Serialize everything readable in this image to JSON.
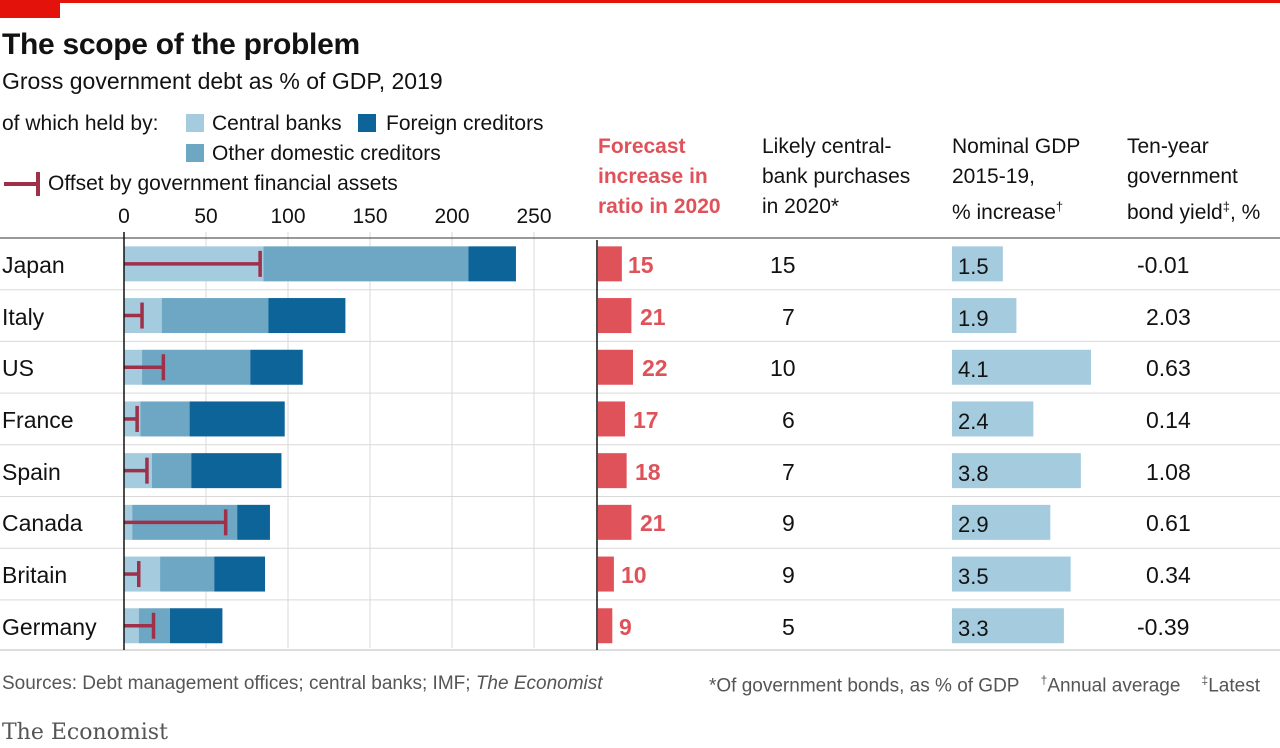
{
  "title": "The scope of the problem",
  "subtitle": "Gross government debt as % of GDP, 2019",
  "legend": {
    "held_by_label": "of which held by:",
    "central_banks": "Central banks",
    "foreign_creditors": "Foreign creditors",
    "other_domestic": "Other domestic creditors",
    "offset": "Offset by government financial assets"
  },
  "colors": {
    "central_banks": "#a5cbdf",
    "other_domestic": "#6ea7c3",
    "foreign_creditors": "#0d6499",
    "offset": "#9e3049",
    "forecast": "#e0525a",
    "gdp_bar": "#a5cbdf",
    "accent": "#e3120b"
  },
  "column_headers": {
    "forecast": [
      "Forecast",
      "increase in",
      "ratio in 2020"
    ],
    "purchases": [
      "Likely central-",
      "bank purchases",
      "in 2020*"
    ],
    "gdp": [
      "Nominal GDP",
      "2015-19,",
      "% increase"
    ],
    "gdp_mark": "†",
    "yield": [
      "Ten-year",
      "government",
      "bond yield"
    ],
    "yield_mark": "‡",
    "yield_suffix": ", %"
  },
  "chart_data": {
    "type": "bar",
    "title": "The scope of the problem",
    "subtitle": "Gross government debt as % of GDP, 2019",
    "xlim": [
      0,
      250
    ],
    "ticks": [
      "0",
      "50",
      "100",
      "150",
      "200",
      "250"
    ],
    "tick_values": [
      0,
      50,
      100,
      150,
      200,
      250
    ],
    "categories": [
      "Japan",
      "Italy",
      "US",
      "France",
      "Spain",
      "Canada",
      "Britain",
      "Germany"
    ],
    "series": [
      {
        "name": "Central banks",
        "values": [
          85,
          23,
          11,
          10,
          17,
          5,
          22,
          9
        ]
      },
      {
        "name": "Other domestic creditors",
        "values": [
          125,
          65,
          66,
          30,
          24,
          64,
          33,
          19
        ]
      },
      {
        "name": "Foreign creditors",
        "values": [
          29,
          47,
          32,
          58,
          55,
          20,
          31,
          32
        ]
      }
    ],
    "offset": [
      83,
      11,
      24,
      8,
      14,
      62,
      9,
      18
    ]
  },
  "forecast_values": [
    "15",
    "21",
    "22",
    "17",
    "18",
    "21",
    "10",
    "9"
  ],
  "forecast_numbers": [
    15,
    21,
    22,
    17,
    18,
    21,
    10,
    9
  ],
  "forecast_scale_max": 22,
  "purchases": [
    "15",
    "7",
    "10",
    "6",
    "7",
    "9",
    "9",
    "5"
  ],
  "gdp_values": [
    "1.5",
    "1.9",
    "4.1",
    "2.4",
    "3.8",
    "2.9",
    "3.5",
    "3.3"
  ],
  "gdp_numbers": [
    1.5,
    1.9,
    4.1,
    2.4,
    3.8,
    2.9,
    3.5,
    3.3
  ],
  "gdp_scale_max": 4.1,
  "yields": [
    "-0.01",
    "2.03",
    "0.63",
    "0.14",
    "1.08",
    "0.61",
    "0.34",
    "-0.39"
  ],
  "footer": {
    "sources": "Sources: Debt management offices; central banks; IMF; ",
    "sources_italic": "The Economist",
    "note_bonds": "*Of government bonds, as % of GDP",
    "note_annual_mark": "†",
    "note_annual": "Annual average",
    "note_latest_mark": "‡",
    "note_latest": "Latest"
  },
  "brand": "The Economist"
}
